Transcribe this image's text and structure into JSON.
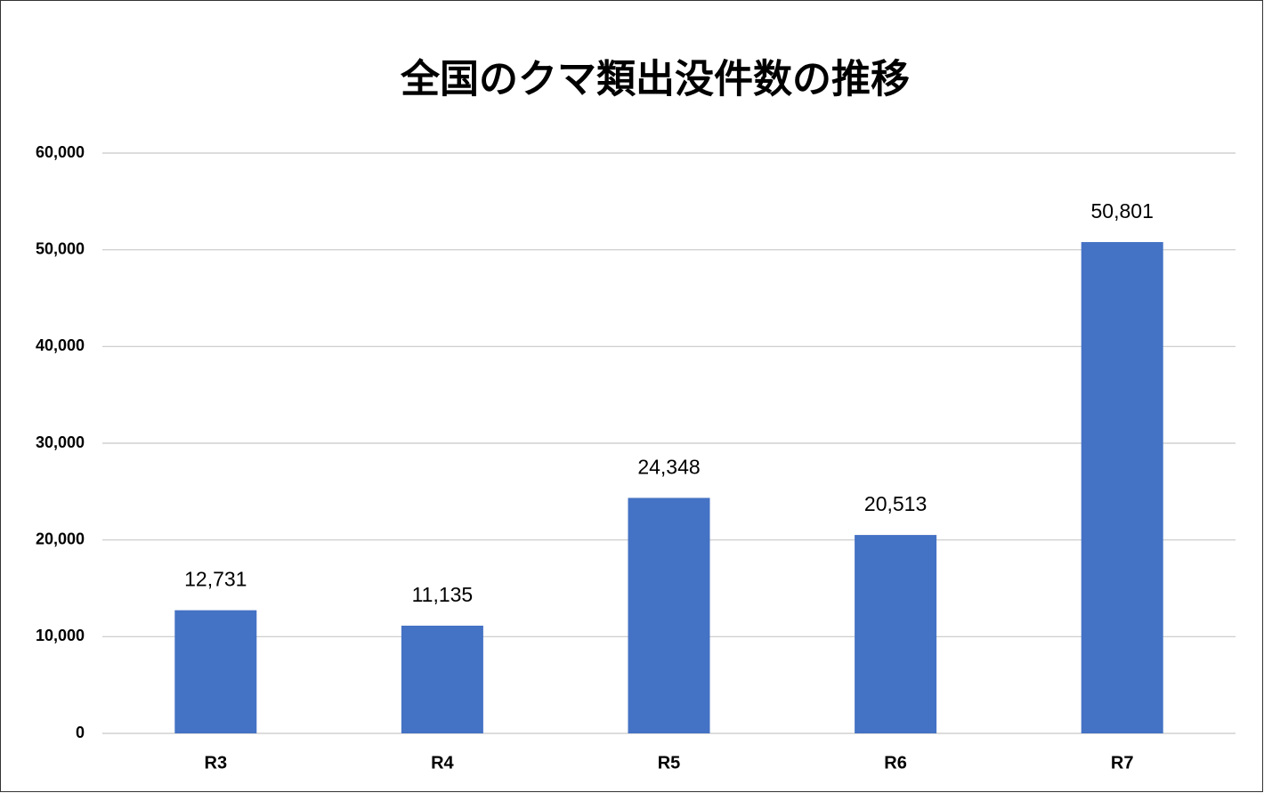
{
  "chart_data": {
    "type": "bar",
    "title": "全国のクマ類出没件数の推移",
    "categories": [
      "R3",
      "R4",
      "R5",
      "R6",
      "R7"
    ],
    "values": [
      12731,
      11135,
      24348,
      20513,
      50801
    ],
    "value_labels": [
      "12,731",
      "11,135",
      "24,348",
      "20,513",
      "50,801"
    ],
    "color": "#4472c4",
    "ylim": [
      0,
      60000
    ],
    "yticks": [
      0,
      {
        "value": 10000,
        "label": "10,000"
      },
      {
        "value": 20000,
        "label": "20,000"
      },
      {
        "value": 30000,
        "label": "30,000"
      },
      {
        "value": 40000,
        "label": "40,000"
      },
      {
        "value": 50000,
        "label": "50,000"
      },
      {
        "value": 60000,
        "label": "60,000"
      }
    ],
    "grid": true
  }
}
